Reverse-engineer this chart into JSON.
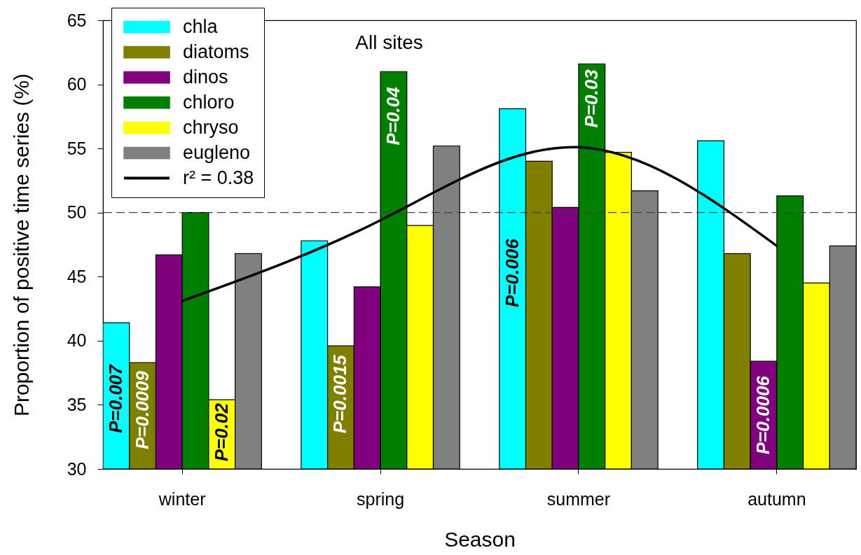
{
  "chart_data": {
    "type": "bar",
    "title": "All sites",
    "xlabel": "Season",
    "ylabel": "Proportion of positive time series (%)",
    "categories": [
      "winter",
      "spring",
      "summer",
      "autumn"
    ],
    "series": [
      {
        "name": "chla",
        "color": "#00ffff",
        "values": [
          41.4,
          47.8,
          58.1,
          55.6
        ]
      },
      {
        "name": "diatoms",
        "color": "#808000",
        "values": [
          38.3,
          39.6,
          54.0,
          46.8
        ]
      },
      {
        "name": "dinos",
        "color": "#800080",
        "values": [
          46.7,
          44.2,
          50.4,
          38.4
        ]
      },
      {
        "name": "chloro",
        "color": "#008000",
        "values": [
          50.0,
          61.0,
          61.6,
          51.3
        ]
      },
      {
        "name": "chryso",
        "color": "#ffff00",
        "values": [
          35.4,
          49.0,
          54.7,
          44.5
        ]
      },
      {
        "name": "eugleno",
        "color": "#808080",
        "values": [
          46.8,
          55.2,
          51.7,
          47.4
        ]
      },
      {
        "name": "r² = 0.38",
        "type": "line",
        "color": "#000000",
        "values": [
          43.1,
          49.4,
          55.1,
          47.4
        ]
      }
    ],
    "annotations": [
      "P=0.007",
      "P=0.0009",
      "P=0.02",
      "P=0.0015",
      "P=0.04",
      "P=0.006",
      "P=0.03",
      "P=0.0006"
    ],
    "ylim": [
      30,
      65
    ],
    "yticks": [
      30,
      35,
      40,
      45,
      50,
      55,
      60,
      65
    ],
    "grid": false,
    "legend": "top left",
    "ref_lines": [
      {
        "axis": "y",
        "value": 50,
        "color": "#404040",
        "line_style": "dashed"
      }
    ]
  }
}
